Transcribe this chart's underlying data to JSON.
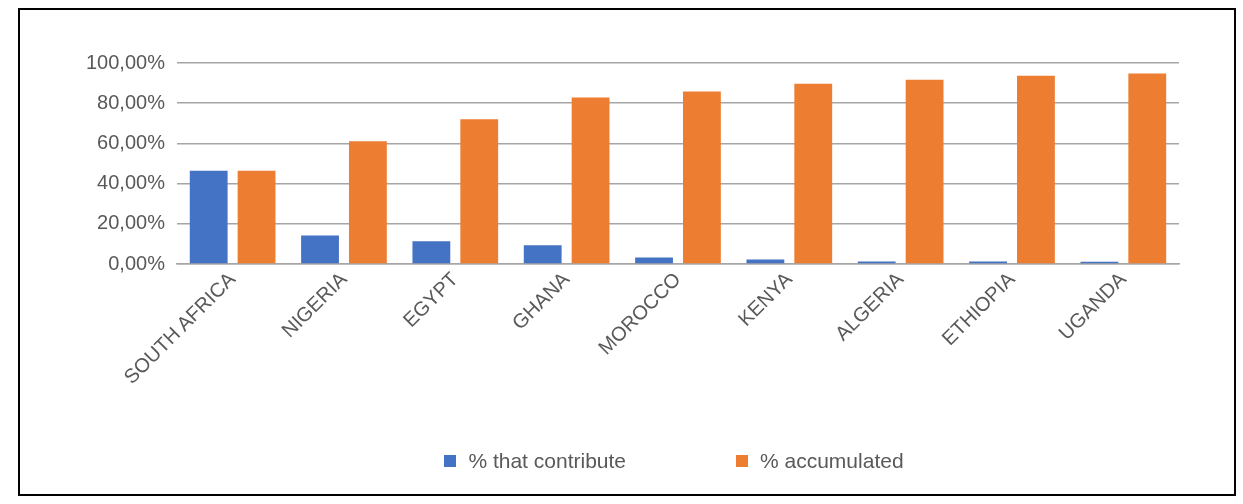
{
  "chart_data": {
    "type": "bar",
    "categories": [
      "SOUTH AFRICA",
      "NIGERIA",
      "EGYPT",
      "GHANA",
      "MOROCCO",
      "KENYA",
      "ALGERIA",
      "ETHIOPIA",
      "UGANDA"
    ],
    "series": [
      {
        "name": "% that contribute",
        "color": "#4472c4",
        "values": [
          46.4,
          14.2,
          11.3,
          9.3,
          3.2,
          2.3,
          1.3,
          1.2,
          1.1
        ]
      },
      {
        "name": "% accumulated",
        "color": "#ed7d31",
        "values": [
          46.4,
          61.1,
          72.0,
          82.8,
          85.8,
          89.7,
          91.7,
          93.6,
          94.8
        ]
      }
    ],
    "ylim": [
      0,
      100
    ],
    "yticks": [
      {
        "value": 0,
        "label": "0,00%"
      },
      {
        "value": 20,
        "label": "20,00%"
      },
      {
        "value": 40,
        "label": "40,00%"
      },
      {
        "value": 60,
        "label": "60,00%"
      },
      {
        "value": 80,
        "label": "80,00%"
      },
      {
        "value": 100,
        "label": "100,00%"
      }
    ],
    "grid": "y",
    "legend": "bottom"
  }
}
